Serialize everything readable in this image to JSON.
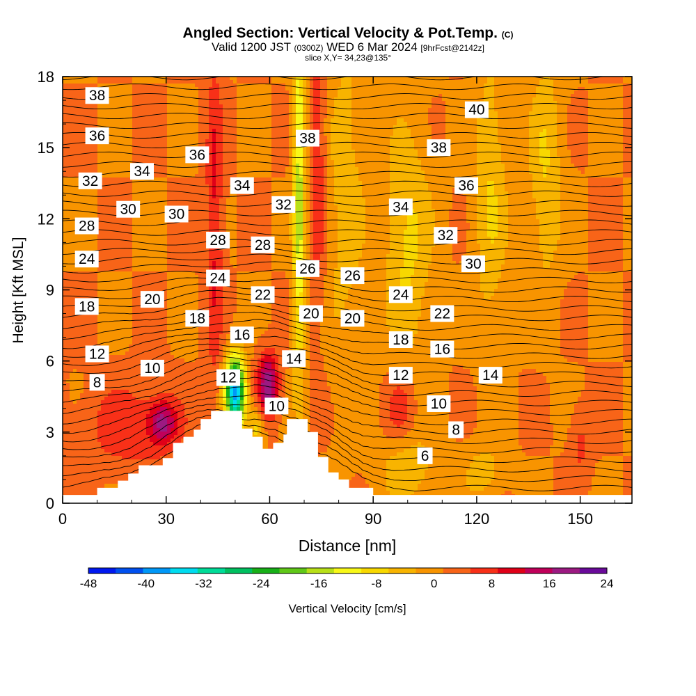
{
  "header": {
    "title": "Angled Section: Vertical Velocity & Pot.Temp.",
    "title_mark": "(C)",
    "valid_prefix": "Valid 1200 JST",
    "valid_utc": "(0300Z)",
    "valid_date": "WED 6 Mar 2024",
    "forecast": "[9hrFcst@2142z]",
    "slice": "slice X,Y= 34,23@135°"
  },
  "chart_data": {
    "type": "heatmap",
    "title": "Angled Section: Vertical Velocity & Pot.Temp.",
    "xlabel": "Distance [nm]",
    "ylabel": "Height [Kft MSL]",
    "xlim": [
      0,
      165
    ],
    "ylim": [
      0,
      18
    ],
    "x_ticks": [
      "0",
      "30",
      "60",
      "90",
      "120",
      "150"
    ],
    "y_ticks": [
      "0",
      "3",
      "6",
      "9",
      "12",
      "15",
      "18"
    ],
    "colorbar": {
      "label": "Vertical Velocity [cm/s]",
      "tick_labels": [
        "-48",
        "-40",
        "-32",
        "-24",
        "-16",
        "-8",
        "0",
        "8",
        "16",
        "24"
      ],
      "levels": [
        -48,
        -44,
        -40,
        -36,
        -32,
        -28,
        -24,
        -20,
        -16,
        -12,
        -8,
        -4,
        0,
        4,
        8,
        12,
        16,
        20,
        24
      ],
      "colors": [
        "#0018f0",
        "#0050f0",
        "#0098f8",
        "#00dcf0",
        "#00dc98",
        "#00c060",
        "#18b018",
        "#60c818",
        "#b8e018",
        "#f8f818",
        "#f8d800",
        "#f8b400",
        "#f89400",
        "#f86418",
        "#f83018",
        "#e00018",
        "#c0005a",
        "#9c1a82",
        "#6a0a9a"
      ]
    },
    "terrain_profile": [
      [
        0,
        0.35
      ],
      [
        10,
        0.35
      ],
      [
        10,
        0.65
      ],
      [
        16,
        0.65
      ],
      [
        16,
        0.95
      ],
      [
        19,
        0.95
      ],
      [
        19,
        1.25
      ],
      [
        22,
        1.25
      ],
      [
        22,
        1.6
      ],
      [
        29,
        1.6
      ],
      [
        29,
        1.9
      ],
      [
        32,
        1.9
      ],
      [
        32,
        2.55
      ],
      [
        35,
        2.55
      ],
      [
        35,
        2.8
      ],
      [
        38,
        2.8
      ],
      [
        38,
        3.1
      ],
      [
        40,
        3.1
      ],
      [
        40,
        3.55
      ],
      [
        43,
        3.55
      ],
      [
        43,
        3.9
      ],
      [
        52,
        3.9
      ],
      [
        52,
        3.15
      ],
      [
        55,
        3.15
      ],
      [
        55,
        2.8
      ],
      [
        58,
        2.8
      ],
      [
        58,
        2.3
      ],
      [
        61,
        2.3
      ],
      [
        61,
        2.55
      ],
      [
        64,
        2.55
      ],
      [
        64,
        2.9
      ],
      [
        65,
        2.9
      ],
      [
        65,
        3.55
      ],
      [
        71,
        3.55
      ],
      [
        71,
        3.0
      ],
      [
        74,
        3.0
      ],
      [
        74,
        1.95
      ],
      [
        77,
        1.95
      ],
      [
        77,
        1.3
      ],
      [
        80,
        1.3
      ],
      [
        80,
        1.0
      ],
      [
        83,
        1.0
      ],
      [
        83,
        0.65
      ],
      [
        90,
        0.65
      ],
      [
        90,
        0.35
      ],
      [
        165,
        0.35
      ]
    ],
    "theta_labels": [
      {
        "x": 10,
        "y": 17.2,
        "text": "38"
      },
      {
        "x": 10,
        "y": 15.5,
        "text": "36"
      },
      {
        "x": 8,
        "y": 13.6,
        "text": "32"
      },
      {
        "x": 7,
        "y": 11.7,
        "text": "28"
      },
      {
        "x": 7,
        "y": 10.3,
        "text": "24"
      },
      {
        "x": 7,
        "y": 8.3,
        "text": "18"
      },
      {
        "x": 10,
        "y": 6.3,
        "text": "12"
      },
      {
        "x": 10,
        "y": 5.1,
        "text": "8"
      },
      {
        "x": 23,
        "y": 14.0,
        "text": "34"
      },
      {
        "x": 19,
        "y": 12.4,
        "text": "30"
      },
      {
        "x": 33,
        "y": 12.2,
        "text": "30"
      },
      {
        "x": 39,
        "y": 14.7,
        "text": "36"
      },
      {
        "x": 26,
        "y": 8.6,
        "text": "20"
      },
      {
        "x": 26,
        "y": 5.7,
        "text": "10"
      },
      {
        "x": 45,
        "y": 11.1,
        "text": "28"
      },
      {
        "x": 45,
        "y": 9.5,
        "text": "24"
      },
      {
        "x": 39,
        "y": 7.8,
        "text": "18"
      },
      {
        "x": 52,
        "y": 13.4,
        "text": "34"
      },
      {
        "x": 58,
        "y": 10.9,
        "text": "28"
      },
      {
        "x": 58,
        "y": 8.8,
        "text": "22"
      },
      {
        "x": 52,
        "y": 7.1,
        "text": "16"
      },
      {
        "x": 48,
        "y": 5.3,
        "text": "12"
      },
      {
        "x": 64,
        "y": 12.6,
        "text": "32"
      },
      {
        "x": 71,
        "y": 15.4,
        "text": "38"
      },
      {
        "x": 71,
        "y": 9.9,
        "text": "26"
      },
      {
        "x": 72,
        "y": 8.0,
        "text": "20"
      },
      {
        "x": 67,
        "y": 6.1,
        "text": "14"
      },
      {
        "x": 62,
        "y": 4.1,
        "text": "10"
      },
      {
        "x": 84,
        "y": 9.6,
        "text": "26"
      },
      {
        "x": 84,
        "y": 7.8,
        "text": "20"
      },
      {
        "x": 98,
        "y": 8.8,
        "text": "24"
      },
      {
        "x": 98,
        "y": 12.5,
        "text": "34"
      },
      {
        "x": 98,
        "y": 6.9,
        "text": "18"
      },
      {
        "x": 98,
        "y": 5.4,
        "text": "12"
      },
      {
        "x": 109,
        "y": 15.0,
        "text": "38"
      },
      {
        "x": 111,
        "y": 11.3,
        "text": "32"
      },
      {
        "x": 110,
        "y": 8.0,
        "text": "22"
      },
      {
        "x": 110,
        "y": 6.5,
        "text": "16"
      },
      {
        "x": 109,
        "y": 4.2,
        "text": "10"
      },
      {
        "x": 105,
        "y": 2.0,
        "text": "6"
      },
      {
        "x": 120,
        "y": 16.6,
        "text": "40"
      },
      {
        "x": 117,
        "y": 13.4,
        "text": "36"
      },
      {
        "x": 119,
        "y": 10.1,
        "text": "30"
      },
      {
        "x": 124,
        "y": 5.4,
        "text": "14"
      },
      {
        "x": 114,
        "y": 3.1,
        "text": "8"
      }
    ]
  }
}
